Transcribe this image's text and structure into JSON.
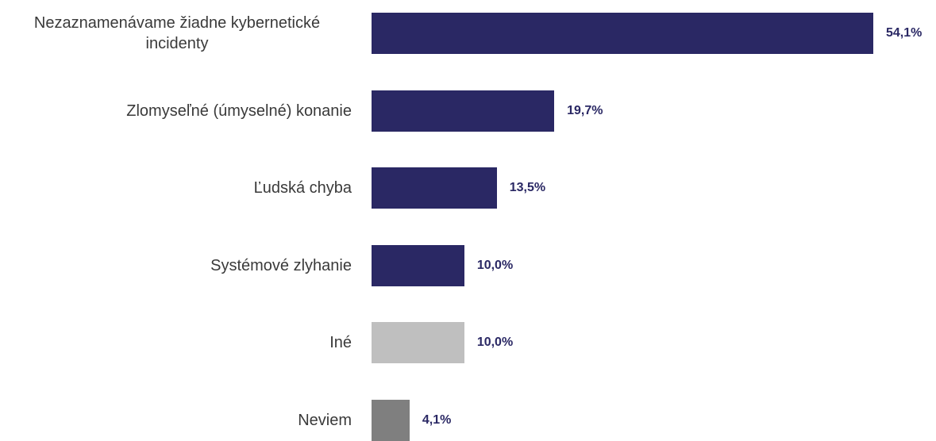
{
  "chart_data": {
    "type": "bar",
    "orientation": "horizontal",
    "categories": [
      "Nezaznamenávame žiadne kybernetické incidenty",
      "Zlomyseľné (úmyselné) konanie",
      "Ľudská chyba",
      "Systémové zlyhanie",
      "Iné",
      "Neviem"
    ],
    "values": [
      54.1,
      19.7,
      13.5,
      10.0,
      10.0,
      4.1
    ],
    "value_labels": [
      "54,1%",
      "19,7%",
      "13,5%",
      "10,0%",
      "10,0%",
      "4,1%"
    ],
    "colors": [
      "#2a2864",
      "#2a2864",
      "#2a2864",
      "#2a2864",
      "#bfbfbf",
      "#7f7f7f"
    ],
    "value_label_color": "#2a2864"
  }
}
